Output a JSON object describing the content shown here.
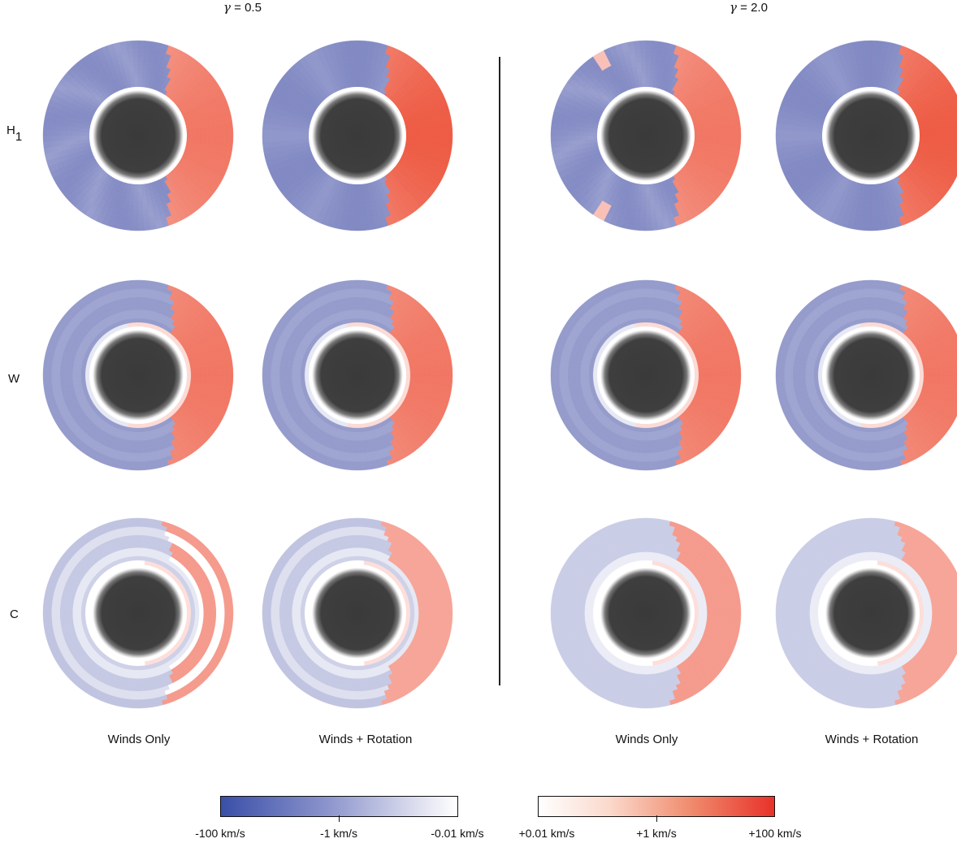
{
  "headers": [
    {
      "symbol": "γ",
      "text": " = 0.5"
    },
    {
      "symbol": "γ",
      "text": " = 2.0"
    }
  ],
  "rows": [
    {
      "main": "H",
      "sub": "1"
    },
    {
      "main": "W",
      "sub": ""
    },
    {
      "main": "C",
      "sub": ""
    }
  ],
  "columns": [
    "Winds Only",
    "Winds + Rotation",
    "Winds Only",
    "Winds + Rotation"
  ],
  "colorbar": {
    "negative_labels": [
      "-100 km/s",
      "-1 km/s",
      "-0.01 km/s"
    ],
    "positive_labels": [
      "+0.01 km/s",
      "+1 km/s",
      "+100 km/s"
    ],
    "negative_color": "#3a4fa8",
    "positive_color": "#e8322a",
    "core_color": "#3c3c3c"
  }
}
